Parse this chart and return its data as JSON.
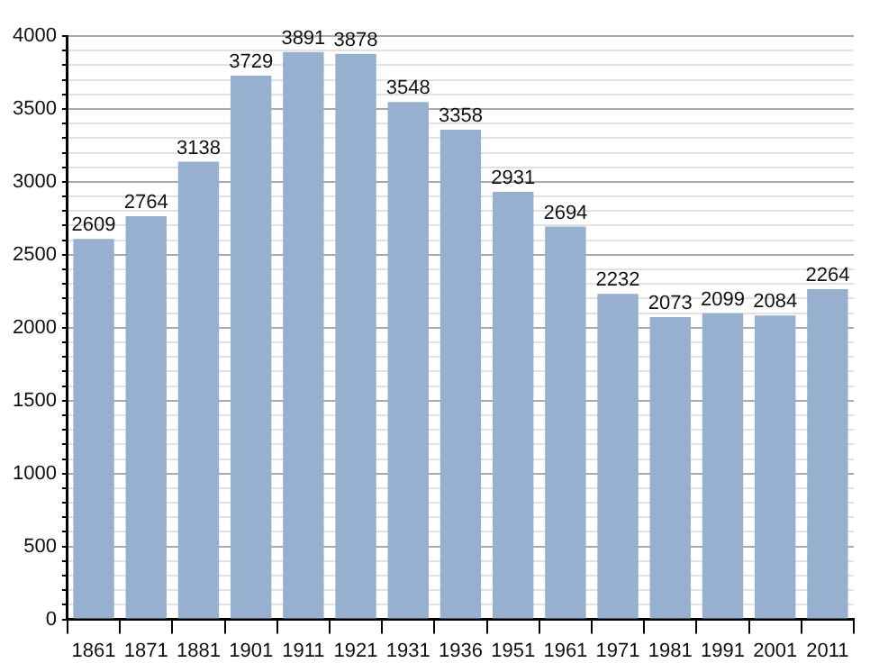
{
  "chart_data": {
    "type": "bar",
    "categories": [
      "1861",
      "1871",
      "1881",
      "1901",
      "1911",
      "1921",
      "1931",
      "1936",
      "1951",
      "1961",
      "1971",
      "1981",
      "1991",
      "2001",
      "2011"
    ],
    "values": [
      2609,
      2764,
      3138,
      3729,
      3891,
      3878,
      3548,
      3358,
      2931,
      2694,
      2232,
      2073,
      2099,
      2084,
      2264
    ],
    "color": "#97b0cf",
    "ylim": [
      0,
      4000
    ],
    "yticks": [
      0,
      {
        "value": 100,
        "label": null
      },
      {
        "value": 200,
        "label": null
      },
      {
        "value": 300,
        "label": null
      },
      {
        "value": 400,
        "label": null
      },
      500,
      {
        "value": 600,
        "label": null
      },
      {
        "value": 700,
        "label": null
      },
      {
        "value": 800,
        "label": null
      },
      {
        "value": 900,
        "label": null
      },
      1000,
      {
        "value": 1100,
        "label": null
      },
      {
        "value": 1200,
        "label": null
      },
      {
        "value": 1300,
        "label": null
      },
      {
        "value": 1400,
        "label": null
      },
      1500,
      {
        "value": 1600,
        "label": null
      },
      {
        "value": 1700,
        "label": null
      },
      {
        "value": 1800,
        "label": null
      },
      {
        "value": 1900,
        "label": null
      },
      2000,
      {
        "value": 2100,
        "label": null
      },
      {
        "value": 2200,
        "label": null
      },
      {
        "value": 2300,
        "label": null
      },
      {
        "value": 2400,
        "label": null
      },
      2500,
      {
        "value": 2600,
        "label": null
      },
      {
        "value": 2700,
        "label": null
      },
      {
        "value": 2800,
        "label": null
      },
      {
        "value": 2900,
        "label": null
      },
      3000,
      {
        "value": 3100,
        "label": null
      },
      {
        "value": 3200,
        "label": null
      },
      {
        "value": 3300,
        "label": null
      },
      {
        "value": 3400,
        "label": null
      },
      3500,
      {
        "value": 3600,
        "label": null
      },
      {
        "value": 3700,
        "label": null
      },
      {
        "value": 3800,
        "label": null
      },
      {
        "value": 3900,
        "label": null
      },
      4000
    ],
    "grid": true,
    "data_labels": true,
    "legend": false
  }
}
